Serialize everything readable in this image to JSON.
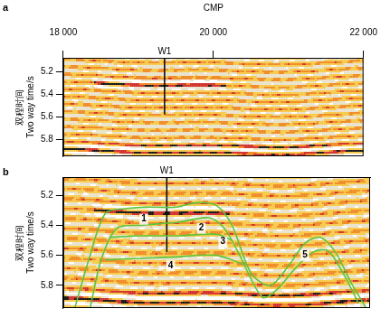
{
  "chart_data": [
    {
      "type": "seismic_section",
      "panel_label": "a",
      "x_label": "CMP",
      "y_label": [
        "双程时间",
        "Two way time/s"
      ],
      "xlim": [
        18000,
        22000
      ],
      "xticks": [
        {
          "value": 18000,
          "label": "18 000"
        },
        {
          "value": 20000,
          "label": "20 000"
        },
        {
          "value": 22000,
          "label": "22 000"
        }
      ],
      "ylim": [
        5.08,
        5.95
      ],
      "yticks": [
        5.2,
        5.4,
        5.6,
        5.8
      ],
      "well": {
        "name": "W1",
        "x": 19350,
        "time_bottom": 5.58
      }
    },
    {
      "type": "seismic_section",
      "panel_label": "b",
      "y_label": [
        "双程时间",
        "Two way time/s"
      ],
      "xlim": [
        18000,
        22000
      ],
      "ylim": [
        5.08,
        5.95
      ],
      "yticks": [
        5.2,
        5.4,
        5.6,
        5.8
      ],
      "tick_labels": "y",
      "well": {
        "name": "W1",
        "x": 19350,
        "time_bottom": 5.58
      },
      "series": [
        {
          "color": "#5cc43c",
          "x": [
            18150,
            18350,
            18550,
            18800,
            19100,
            19450,
            19750,
            20000,
            20200,
            20450,
            20700,
            20950,
            21150,
            21350,
            21550,
            21750,
            21950
          ],
          "values": [
            5.95,
            5.6,
            5.32,
            5.29,
            5.28,
            5.28,
            5.25,
            5.27,
            5.4,
            5.72,
            5.8,
            5.66,
            5.52,
            5.48,
            5.58,
            5.78,
            5.95
          ]
        },
        {
          "color": "#5cc43c",
          "x": [
            18350,
            18500,
            18700,
            19000,
            19500,
            19900,
            20100,
            20300,
            20600,
            20800,
            21000,
            21250,
            21450,
            21650,
            21850
          ],
          "values": [
            5.95,
            5.62,
            5.42,
            5.4,
            5.38,
            5.35,
            5.42,
            5.6,
            5.88,
            5.82,
            5.7,
            5.58,
            5.57,
            5.72,
            5.92
          ]
        },
        {
          "color": "#5cc43c",
          "x": [
            18600,
            19000,
            19500,
            20000,
            20200
          ],
          "values": [
            5.48,
            5.47,
            5.47,
            5.46,
            5.5
          ]
        },
        {
          "color": "#5cc43c",
          "x": [
            18550,
            19000,
            19500,
            20000,
            20350
          ],
          "values": [
            5.63,
            5.62,
            5.61,
            5.6,
            5.66
          ]
        }
      ],
      "annotations": [
        {
          "text": "1",
          "x": 19050,
          "y": 5.36
        },
        {
          "text": "2",
          "x": 19800,
          "y": 5.42
        },
        {
          "text": "3",
          "x": 20080,
          "y": 5.51
        },
        {
          "text": "4",
          "x": 19400,
          "y": 5.67
        },
        {
          "text": "5",
          "x": 21150,
          "y": 5.6
        }
      ]
    }
  ]
}
